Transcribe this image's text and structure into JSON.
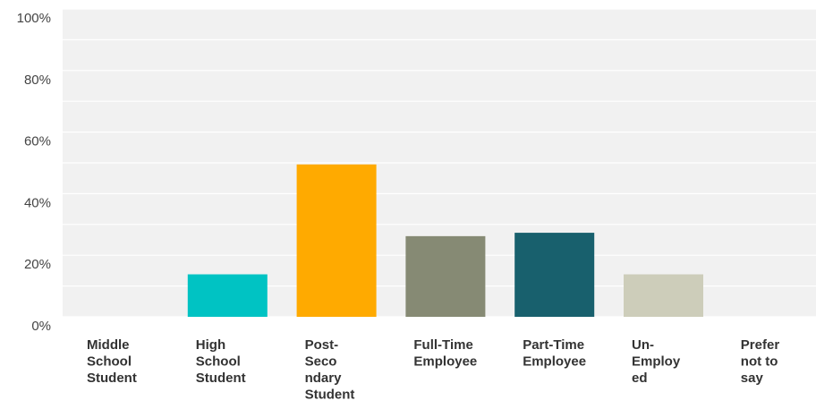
{
  "chart_data": {
    "type": "bar",
    "categories": [
      "Middle School Student",
      "High School Student",
      "Post-Secondary Student",
      "Full-Time Employee",
      "Part-Time Employee",
      "Un-Employed",
      "Prefer not to say"
    ],
    "category_label_lines": [
      [
        "Middle",
        "School",
        "Student"
      ],
      [
        "High",
        "School",
        "Student"
      ],
      [
        "Post-",
        "Seco",
        "ndary",
        "Student"
      ],
      [
        "Full-Time",
        "Employee"
      ],
      [
        "Part-Time",
        "Employee"
      ],
      [
        "Un-",
        "Employ",
        "ed"
      ],
      [
        "Prefer",
        "not to",
        "say"
      ]
    ],
    "values": [
      0,
      13.8,
      49.5,
      26.2,
      27.3,
      13.8,
      0
    ],
    "colors": [
      "#00C3C3",
      "#00C3C3",
      "#FFAA00",
      "#868A74",
      "#18606D",
      "#CDCDBA",
      "#CDCDBA"
    ],
    "title": "",
    "xlabel": "",
    "ylabel": "",
    "ylim": [
      0,
      100
    ],
    "yticks": [
      "0%",
      "20%",
      "40%",
      "60%",
      "80%",
      "100%"
    ],
    "ytick_values": [
      0,
      20,
      40,
      60,
      80,
      100
    ],
    "minor_gridlines": [
      10,
      30,
      50,
      70,
      90
    ],
    "background": "#F1F1F1",
    "gridline_color": "#FFFFFF",
    "grid": true,
    "legend": "none"
  }
}
